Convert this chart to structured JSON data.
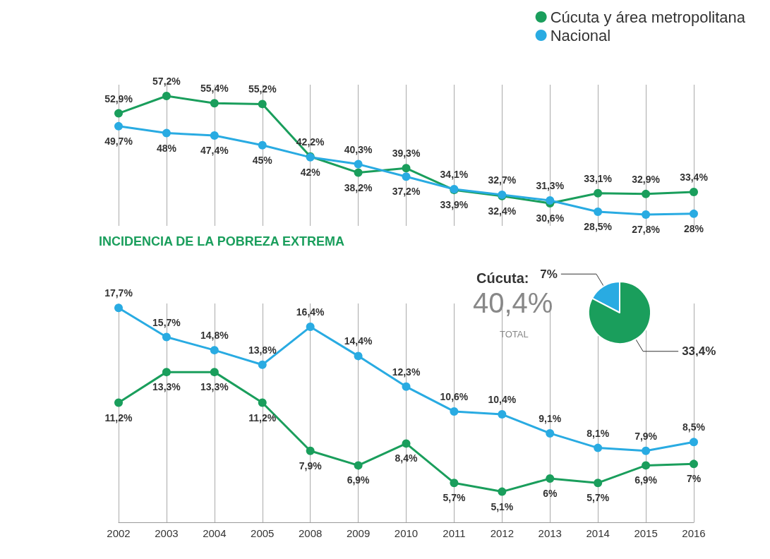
{
  "chart_data": [
    {
      "type": "line",
      "categories": [
        "2002",
        "2003",
        "2004",
        "2005",
        "2008",
        "2009",
        "2010",
        "2011",
        "2012",
        "2013",
        "2014",
        "2015",
        "2016"
      ],
      "legend": "top right",
      "grid": "x",
      "marker": "circle",
      "line_style": "solid",
      "tick_labels": false,
      "series": [
        {
          "name": "Cúcuta y área metropolitana",
          "color": "#1a9e5c",
          "values": [
            52.9,
            57.2,
            55.4,
            55.2,
            42.2,
            38.2,
            39.3,
            33.9,
            32.4,
            30.6,
            33.1,
            32.9,
            33.4
          ],
          "value_labels": [
            "52,9%",
            "57,2%",
            "55,4%",
            "55,2%",
            "42,2%",
            "38,2%",
            "39,3%",
            "33,9%",
            "32,4%",
            "30,6%",
            "33,1%",
            "32,9%",
            "33,4%"
          ]
        },
        {
          "name": "Nacional",
          "color": "#29abe2",
          "values": [
            49.7,
            48,
            47.4,
            45,
            42,
            40.3,
            37.2,
            34.1,
            32.7,
            31.3,
            28.5,
            27.8,
            28
          ],
          "value_labels": [
            "49,7%",
            "48%",
            "47,4%",
            "45%",
            "42%",
            "40,3%",
            "37,2%",
            "34,1%",
            "32,7%",
            "31,3%",
            "28,5%",
            "27,8%",
            "28%"
          ]
        }
      ]
    },
    {
      "type": "line",
      "title": "INCIDENCIA DE LA POBREZA EXTREMA",
      "categories": [
        "2002",
        "2003",
        "2004",
        "2005",
        "2008",
        "2009",
        "2010",
        "2011",
        "2012",
        "2013",
        "2014",
        "2015",
        "2016"
      ],
      "grid": "x",
      "marker": "circle",
      "line_style": "solid",
      "tick_labels": "x",
      "series": [
        {
          "color": "#1a9e5c",
          "values": [
            11.2,
            13.3,
            13.3,
            11.2,
            7.9,
            6.9,
            8.4,
            5.7,
            5.1,
            6,
            5.7,
            6.9,
            7
          ],
          "value_labels": [
            "11,2%",
            "13,3%",
            "13,3%",
            "11,2%",
            "7,9%",
            "6,9%",
            "8,4%",
            "5,7%",
            "5,1%",
            "6%",
            "5,7%",
            "6,9%",
            "7%"
          ]
        },
        {
          "color": "#29abe2",
          "values": [
            17.7,
            15.7,
            14.8,
            13.8,
            16.4,
            14.4,
            12.3,
            10.6,
            10.4,
            9.1,
            8.1,
            7.9,
            8.5
          ],
          "value_labels": [
            "17,7%",
            "15,7%",
            "14,8%",
            "13,8%",
            "16,4%",
            "14,4%",
            "12,3%",
            "10,6%",
            "10,4%",
            "9,1%",
            "8,1%",
            "7,9%",
            "8,5%"
          ]
        }
      ]
    },
    {
      "type": "pie",
      "title": "Cúcuta:",
      "annotations": [
        "40,4%",
        "TOTAL"
      ],
      "categories": [
        null,
        null
      ],
      "values": [
        7,
        33.4
      ],
      "colors": [
        "#29abe2",
        "#1a9e5c"
      ],
      "value_labels": [
        "7%",
        "33,4%"
      ]
    }
  ]
}
